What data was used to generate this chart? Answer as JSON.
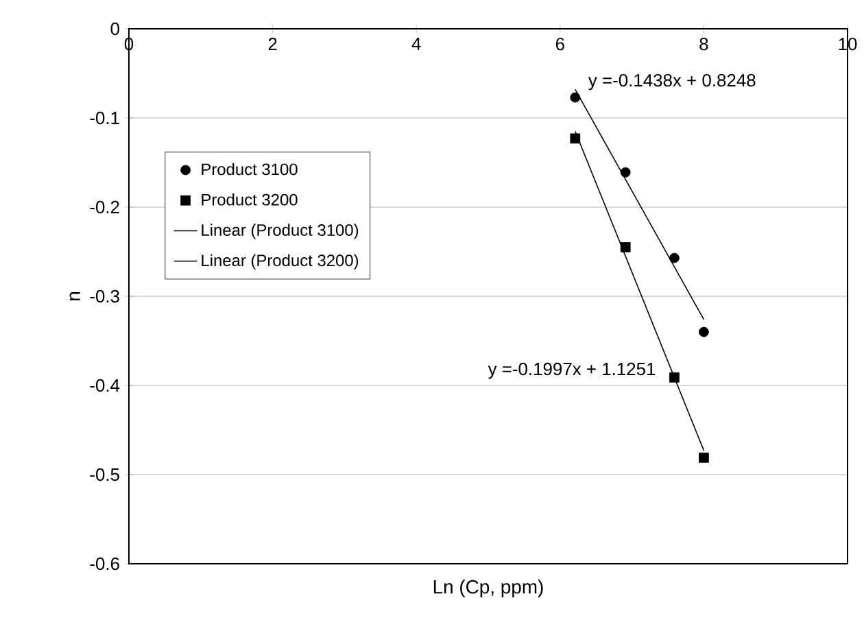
{
  "chart_data": {
    "type": "scatter",
    "xlabel": "Ln (Cp, ppm)",
    "ylabel": "n",
    "xlim": [
      0,
      10
    ],
    "ylim": [
      -0.6,
      0
    ],
    "xticks": [
      0,
      2,
      4,
      6,
      8,
      10
    ],
    "yticks": [
      -0.6,
      -0.5,
      -0.4,
      -0.3,
      -0.2,
      -0.1,
      0
    ],
    "grid": "y",
    "legend": "left",
    "series": [
      {
        "name": "Product 3100",
        "marker": "circle",
        "color": "#000000",
        "x": [
          6.21,
          6.91,
          7.59,
          8.0
        ],
        "values": [
          -0.077,
          -0.161,
          -0.257,
          -0.34
        ]
      },
      {
        "name": "Product 3200",
        "marker": "square",
        "color": "#000000",
        "x": [
          6.21,
          6.91,
          7.59,
          8.0
        ],
        "values": [
          -0.123,
          -0.245,
          -0.391,
          -0.481
        ]
      },
      {
        "name": "Linear (Product 3100)",
        "type": "line",
        "marker": "none",
        "line_style": "solid",
        "color": "#000000",
        "x": [
          6.21,
          8.0
        ],
        "values": [
          -0.068,
          -0.326
        ]
      },
      {
        "name": "Linear (Product 3200)",
        "type": "line",
        "marker": "none",
        "line_style": "solid",
        "color": "#000000",
        "x": [
          6.21,
          8.0
        ],
        "values": [
          -0.115,
          -0.473
        ]
      }
    ],
    "annotations": [
      "y =-0.1438x + 0.8248",
      "y =-0.1997x + 1.1251"
    ]
  }
}
